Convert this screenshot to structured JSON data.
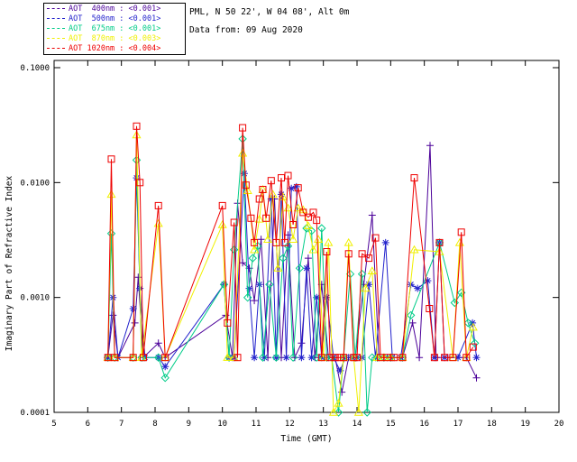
{
  "header": {
    "line1": "PML, N 50 22', W 04 08', Alt 0m",
    "line2": "Data from: 09 Aug 2020"
  },
  "chart_data": {
    "type": "line",
    "title": "",
    "xlabel": "Time (GMT)",
    "ylabel": "Imaginary Part of Refractive Index",
    "xlim": [
      5,
      20
    ],
    "ylim": [
      0.0001,
      0.1
    ],
    "yscale": "log",
    "grid": false,
    "legend_position": "top-left",
    "x_ticks": [
      5,
      6,
      7,
      8,
      9,
      10,
      11,
      12,
      13,
      14,
      15,
      16,
      17,
      18,
      19,
      20
    ],
    "y_ticks": [
      {
        "value": 0.1,
        "label": "0.1000"
      },
      {
        "value": 0.01,
        "label": "0.0100"
      },
      {
        "value": 0.001,
        "label": "0.0010"
      },
      {
        "value": 0.0001,
        "label": "0.0001"
      }
    ],
    "series": [
      {
        "name": "AOT 400nm",
        "legend_label": "AOT  400nm : <0.001>",
        "color": "#4B0099",
        "marker": "plus",
        "x": [
          6.6,
          6.75,
          6.9,
          7.4,
          7.5,
          7.65,
          8.1,
          8.3,
          10.1,
          10.3,
          10.45,
          10.6,
          10.8,
          10.95,
          11.15,
          11.35,
          11.55,
          11.75,
          11.95,
          12.15,
          12.35,
          12.55,
          12.75,
          12.95,
          13.15,
          13.35,
          13.55,
          13.75,
          13.95,
          14.2,
          14.45,
          14.65,
          14.9,
          15.1,
          15.35,
          15.65,
          15.85,
          16.17,
          16.35,
          16.7,
          17.0,
          17.25,
          17.55
        ],
        "y": [
          0.0003,
          0.0007,
          0.0003,
          0.0006,
          0.0015,
          0.0003,
          0.0004,
          0.0003,
          0.0007,
          0.0003,
          0.0066,
          0.002,
          0.0018,
          0.00094,
          0.0032,
          0.0003,
          0.0072,
          0.0003,
          0.0035,
          0.0003,
          0.0004,
          0.0022,
          0.0003,
          0.0013,
          0.0003,
          0.0003,
          0.00015,
          0.0003,
          0.0003,
          0.0013,
          0.0052,
          0.0003,
          0.0003,
          0.0003,
          0.0003,
          0.0006,
          0.0003,
          0.021,
          0.0003,
          0.0003,
          0.0003,
          0.0003,
          0.0002
        ]
      },
      {
        "name": "AOT 500nm",
        "legend_label": "AOT  500nm : <0.001>",
        "color": "#2222CC",
        "marker": "asterisk",
        "x": [
          6.6,
          6.75,
          6.9,
          7.35,
          7.45,
          7.55,
          7.7,
          8.1,
          8.3,
          10.05,
          10.2,
          10.35,
          10.65,
          10.8,
          10.95,
          11.1,
          11.25,
          11.45,
          11.6,
          11.75,
          11.9,
          12.05,
          12.2,
          12.35,
          12.5,
          12.65,
          12.8,
          12.95,
          13.1,
          13.3,
          13.5,
          13.65,
          13.85,
          14.0,
          14.15,
          14.35,
          14.55,
          14.85,
          15.05,
          15.3,
          15.6,
          15.8,
          16.1,
          16.3,
          16.45,
          16.6,
          17.0,
          17.43,
          17.55
        ],
        "y": [
          0.0003,
          0.001,
          0.0003,
          0.0008,
          0.011,
          0.0012,
          0.0003,
          0.0003,
          0.00025,
          0.0013,
          0.0003,
          0.0003,
          0.012,
          0.0012,
          0.0003,
          0.0013,
          0.0003,
          0.0072,
          0.0003,
          0.0079,
          0.0003,
          0.0089,
          0.0092,
          0.0003,
          0.0018,
          0.0003,
          0.001,
          0.0003,
          0.001,
          0.0003,
          0.00023,
          0.0003,
          0.0003,
          0.0003,
          0.0003,
          0.0013,
          0.0003,
          0.003,
          0.0003,
          0.0003,
          0.0013,
          0.0012,
          0.0014,
          0.0003,
          0.003,
          0.0003,
          0.0003,
          0.0006,
          0.0003
        ]
      },
      {
        "name": "AOT 675nm",
        "legend_label": "AOT  675nm : <0.001>",
        "color": "#00CC88",
        "marker": "diamond",
        "x": [
          6.6,
          6.7,
          6.8,
          7.35,
          7.45,
          7.6,
          8.1,
          8.3,
          10.05,
          10.2,
          10.35,
          10.6,
          10.75,
          10.9,
          11.05,
          11.2,
          11.4,
          11.6,
          11.8,
          11.95,
          12.1,
          12.3,
          12.5,
          12.65,
          12.8,
          12.95,
          13.1,
          13.25,
          13.45,
          13.6,
          13.8,
          13.95,
          14.15,
          14.3,
          14.45,
          14.6,
          14.8,
          15.0,
          15.35,
          15.6,
          16.45,
          16.9,
          17.1,
          17.3,
          17.5
        ],
        "y": [
          0.0003,
          0.0036,
          0.0003,
          0.0003,
          0.0157,
          0.0003,
          0.0003,
          0.0002,
          0.0013,
          0.0003,
          0.0026,
          0.024,
          0.001,
          0.0022,
          0.0028,
          0.0003,
          0.0013,
          0.0003,
          0.0022,
          0.0028,
          0.0003,
          0.0018,
          0.004,
          0.0038,
          0.0003,
          0.004,
          0.0003,
          0.0003,
          0.0001,
          0.0003,
          0.0016,
          0.0003,
          0.0016,
          0.0001,
          0.0003,
          0.0003,
          0.0003,
          0.0003,
          0.0003,
          0.0007,
          0.003,
          0.0009,
          0.0011,
          0.0006,
          0.0004
        ]
      },
      {
        "name": "AOT 870nm",
        "legend_label": "AOT  870nm : <0.003>",
        "color": "#F0F000",
        "marker": "triangle",
        "x": [
          6.6,
          6.7,
          6.8,
          7.35,
          7.45,
          7.6,
          8.1,
          8.3,
          10.0,
          10.15,
          10.35,
          10.6,
          10.75,
          10.95,
          11.1,
          11.2,
          11.35,
          11.5,
          11.65,
          11.8,
          11.95,
          12.1,
          12.25,
          12.4,
          12.55,
          12.7,
          12.85,
          13.0,
          13.15,
          13.3,
          13.45,
          13.6,
          13.75,
          13.9,
          14.05,
          14.25,
          14.45,
          14.6,
          14.8,
          15.0,
          15.35,
          15.7,
          16.45,
          16.85,
          17.05,
          17.25,
          17.45
        ],
        "y": [
          0.0003,
          0.0079,
          0.0003,
          0.0003,
          0.026,
          0.0003,
          0.0044,
          0.0003,
          0.0043,
          0.0003,
          0.0003,
          0.018,
          0.0085,
          0.0026,
          0.0048,
          0.0087,
          0.0032,
          0.0079,
          0.0018,
          0.0075,
          0.006,
          0.0032,
          0.006,
          0.0058,
          0.0042,
          0.0026,
          0.0032,
          0.0003,
          0.003,
          0.0001,
          0.00012,
          0.0003,
          0.003,
          0.0003,
          0.0001,
          0.0012,
          0.0017,
          0.0003,
          0.0003,
          0.0003,
          0.0003,
          0.0026,
          0.0025,
          0.0003,
          0.003,
          0.0003,
          0.00055
        ]
      },
      {
        "name": "AOT 1020nm",
        "legend_label": "AOT 1020nm : <0.004>",
        "color": "#EE0000",
        "marker": "square",
        "x": [
          6.6,
          6.7,
          6.8,
          7.35,
          7.45,
          7.55,
          7.65,
          8.1,
          8.3,
          10.0,
          10.15,
          10.35,
          10.45,
          10.6,
          10.7,
          10.85,
          10.95,
          11.1,
          11.2,
          11.3,
          11.45,
          11.6,
          11.75,
          11.85,
          11.95,
          12.1,
          12.25,
          12.4,
          12.55,
          12.7,
          12.8,
          12.95,
          13.1,
          13.2,
          13.35,
          13.5,
          13.6,
          13.75,
          13.9,
          14.0,
          14.15,
          14.35,
          14.55,
          14.7,
          14.9,
          15.1,
          15.35,
          15.7,
          16.15,
          16.3,
          16.45,
          16.6,
          16.85,
          17.1,
          17.25,
          17.45
        ],
        "y": [
          0.0003,
          0.016,
          0.0003,
          0.0003,
          0.031,
          0.01,
          0.0003,
          0.0063,
          0.0003,
          0.0063,
          0.0006,
          0.0045,
          0.0003,
          0.03,
          0.0095,
          0.0049,
          0.003,
          0.0072,
          0.0087,
          0.0049,
          0.0104,
          0.003,
          0.011,
          0.003,
          0.0115,
          0.0043,
          0.009,
          0.0055,
          0.005,
          0.0055,
          0.0047,
          0.0003,
          0.0025,
          0.0003,
          0.0003,
          0.0003,
          0.0003,
          0.0024,
          0.0003,
          0.0003,
          0.0024,
          0.0022,
          0.0033,
          0.0003,
          0.0003,
          0.0003,
          0.0003,
          0.011,
          0.0008,
          0.0003,
          0.003,
          0.0003,
          0.0003,
          0.0037,
          0.0003,
          0.00037
        ]
      }
    ]
  }
}
